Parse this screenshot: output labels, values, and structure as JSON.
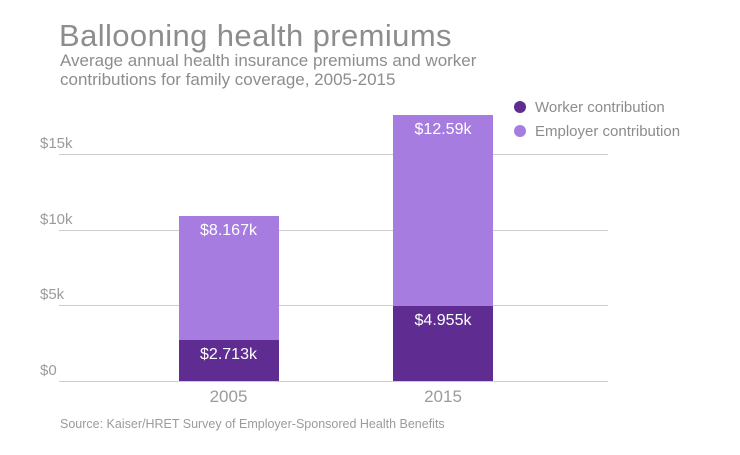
{
  "header": {
    "title": "Ballooning health premiums",
    "subtitle_line1": "Average annual health insurance premiums and worker",
    "subtitle_line2": "contributions for family coverage, 2005-2015"
  },
  "legend": {
    "items": [
      {
        "label": "Worker contribution",
        "color": "#5f2d91"
      },
      {
        "label": "Employer contribution",
        "color": "#a77ce0"
      }
    ]
  },
  "chart_data": {
    "type": "bar",
    "stacked": true,
    "title": "Ballooning health premiums",
    "subtitle": "Average annual health insurance premiums and worker contributions for family coverage, 2005-2015",
    "categories": [
      "2005",
      "2015"
    ],
    "series": [
      {
        "name": "Worker contribution",
        "color": "#5f2d91",
        "values": [
          2.713,
          4.955
        ],
        "labels": [
          "$2.713k",
          "$4.955k"
        ]
      },
      {
        "name": "Employer contribution",
        "color": "#a77ce0",
        "values": [
          8.167,
          12.59
        ],
        "labels": [
          "$8.167k",
          "$12.59k"
        ]
      }
    ],
    "totals": [
      10.88,
      17.545
    ],
    "unit": "thousand USD per year",
    "xlabel": "",
    "ylabel": "",
    "yticks": [
      {
        "label": "$0",
        "value": 0
      },
      {
        "label": "$5k",
        "value": 5
      },
      {
        "label": "$10k",
        "value": 10
      },
      {
        "label": "$15k",
        "value": 15
      }
    ],
    "ylim": [
      0,
      18.2
    ],
    "grid": true,
    "legend_position": "top-right"
  },
  "footer": {
    "source": "Source: Kaiser/HRET Survey of Employer-Sponsored Health Benefits"
  },
  "colors": {
    "worker": "#5f2d91",
    "employer": "#a77ce0",
    "gridline": "#cccccc",
    "title_text": "#8d8d8d",
    "axis_text": "#9b9b9b",
    "legend_text": "#8c8c8c",
    "bar_label_text": "#ffffff",
    "background": "#ffffff"
  }
}
